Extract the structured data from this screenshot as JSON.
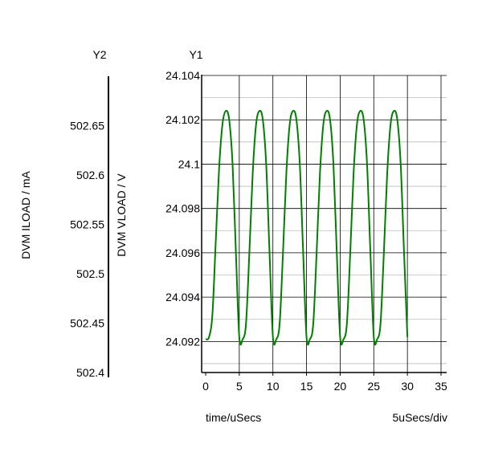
{
  "chart_data": {
    "type": "line",
    "x_label": "time/uSecs",
    "x_scale_note": "5uSecs/div",
    "x_range": [
      0,
      35
    ],
    "x_ticks": [
      "0",
      "5",
      "10",
      "15",
      "20",
      "25",
      "30",
      "35"
    ],
    "y1_axis_title": "Y1",
    "y1_label": "DVM VLOAD / V",
    "y1_range": [
      24.0906,
      24.104
    ],
    "y1_ticks": [
      "24.092",
      "24.094",
      "24.096",
      "24.098",
      "24.1",
      "24.102",
      "24.104"
    ],
    "y2_axis_title": "Y2",
    "y2_label": "DVM ILOAD / mA",
    "y2_range": [
      502.4,
      502.7
    ],
    "y2_ticks": [
      "502.4",
      "502.45",
      "502.5",
      "502.55",
      "502.6",
      "502.65"
    ],
    "grid": true,
    "series": [
      {
        "axis": "y1",
        "color": "#008000",
        "x": [
          0.0,
          0.5,
          1.0,
          1.5,
          2.0,
          2.5,
          3.0,
          3.5,
          4.0,
          4.5,
          5.0,
          5.5,
          6.0,
          6.5,
          7.0,
          7.5,
          8.0,
          8.5,
          9.0,
          9.5,
          10.0,
          10.5,
          11.0,
          11.5,
          12.0,
          12.5,
          13.0,
          13.5,
          14.0,
          14.5,
          15.0,
          15.5,
          16.0,
          16.5,
          17.0,
          17.5,
          18.0,
          18.5,
          19.0,
          19.5,
          20.0,
          20.5,
          21.0,
          21.5,
          22.0,
          22.5,
          23.0,
          23.5,
          24.0,
          24.5,
          25.0,
          25.5,
          26.0,
          26.5,
          27.0,
          27.5,
          28.0,
          28.5,
          29.0,
          29.5,
          30.0
        ],
        "y": [
          24.0921,
          24.0922,
          24.0932,
          24.0965,
          24.0998,
          24.1018,
          24.1024,
          24.102,
          24.1,
          24.096,
          24.0922,
          24.0921,
          24.0928,
          24.096,
          24.0996,
          24.1018,
          24.1024,
          24.102,
          24.1,
          24.096,
          24.0922,
          24.0921,
          24.0928,
          24.096,
          24.0996,
          24.1018,
          24.1024,
          24.102,
          24.1,
          24.096,
          24.0922,
          24.0921,
          24.0928,
          24.096,
          24.0996,
          24.1018,
          24.1024,
          24.102,
          24.1,
          24.096,
          24.0922,
          24.0921,
          24.0928,
          24.096,
          24.0996,
          24.1018,
          24.1024,
          24.102,
          24.1,
          24.096,
          24.0922,
          24.0921,
          24.0928,
          24.096,
          24.0996,
          24.1018,
          24.1024,
          24.102,
          24.1,
          24.096,
          24.0922
        ]
      }
    ]
  }
}
